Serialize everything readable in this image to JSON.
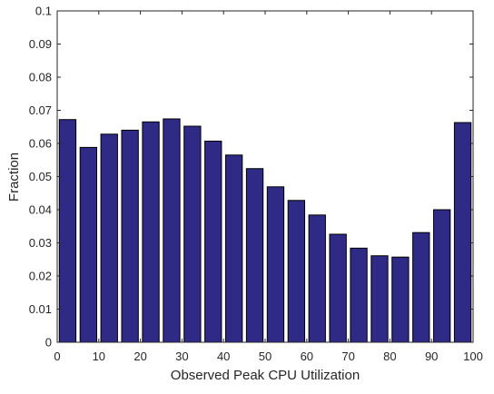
{
  "chart_data": {
    "type": "bar",
    "title": "",
    "xlabel": "Observed Peak CPU Utilization",
    "ylabel": "Fraction",
    "xlim": [
      0,
      100
    ],
    "ylim": [
      0,
      0.1
    ],
    "grid": false,
    "legend": "none",
    "bar_color": "#2e2a86",
    "bar_edge_color": "#000000",
    "x": [
      2.5,
      7.5,
      12.5,
      17.5,
      22.5,
      27.5,
      32.5,
      37.5,
      42.5,
      47.5,
      52.5,
      57.5,
      62.5,
      67.5,
      72.5,
      77.5,
      82.5,
      87.5,
      92.5,
      97.5
    ],
    "values": [
      0.0672,
      0.0588,
      0.0628,
      0.064,
      0.0665,
      0.0674,
      0.0652,
      0.0607,
      0.0565,
      0.0524,
      0.0469,
      0.0428,
      0.0384,
      0.0326,
      0.0284,
      0.0261,
      0.0257,
      0.0331,
      0.04,
      0.0663
    ],
    "xticks": [
      0,
      10,
      20,
      30,
      40,
      50,
      60,
      70,
      80,
      90,
      100
    ],
    "xtick_labels": [
      "0",
      "10",
      "20",
      "30",
      "40",
      "50",
      "60",
      "70",
      "80",
      "90",
      "100"
    ],
    "yticks": [
      0,
      0.01,
      0.02,
      0.03,
      0.04,
      0.05,
      0.06,
      0.07,
      0.08,
      0.09,
      0.1
    ],
    "ytick_labels": [
      "0",
      "0.01",
      "0.02",
      "0.03",
      "0.04",
      "0.05",
      "0.06",
      "0.07",
      "0.08",
      "0.09",
      "0.1"
    ]
  }
}
